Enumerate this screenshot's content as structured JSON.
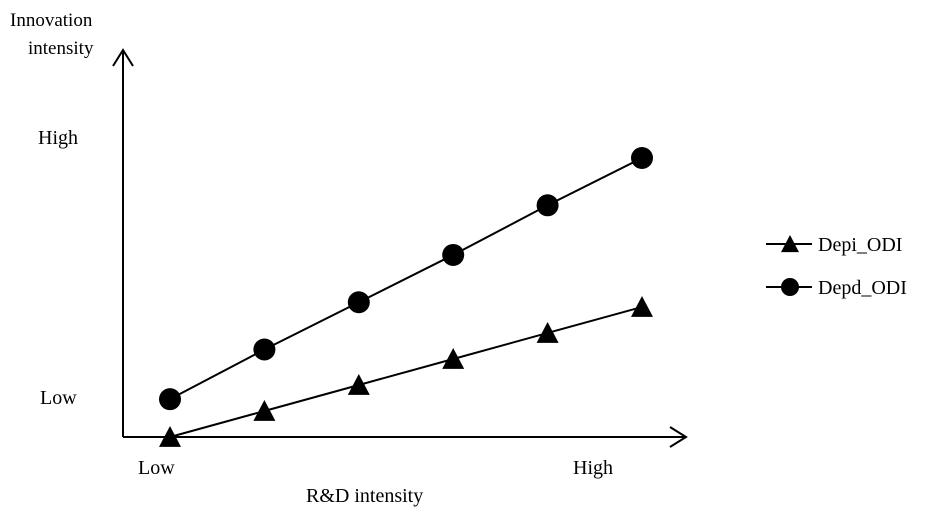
{
  "chart_data": {
    "type": "line",
    "title": "",
    "xlabel": "R&D intensity",
    "ylabel_lines": [
      "Innovation",
      "intensity"
    ],
    "x_ticks": [
      "Low",
      "High"
    ],
    "y_ticks": [
      "High",
      "Low"
    ],
    "x": [
      1,
      2,
      3,
      4,
      5,
      6
    ],
    "xlim": [
      0.5,
      6.5
    ],
    "ylim": [
      0,
      12
    ],
    "grid": false,
    "legend_position": "right",
    "series": [
      {
        "name": "Depi_ODI",
        "marker": "triangle",
        "color": "#000000",
        "values": [
          0,
          1.1,
          2.2,
          3.3,
          4.4,
          5.5
        ]
      },
      {
        "name": "Depd_ODI",
        "marker": "circle",
        "color": "#000000",
        "values": [
          1.6,
          3.7,
          5.7,
          7.7,
          9.8,
          11.8
        ]
      }
    ]
  }
}
